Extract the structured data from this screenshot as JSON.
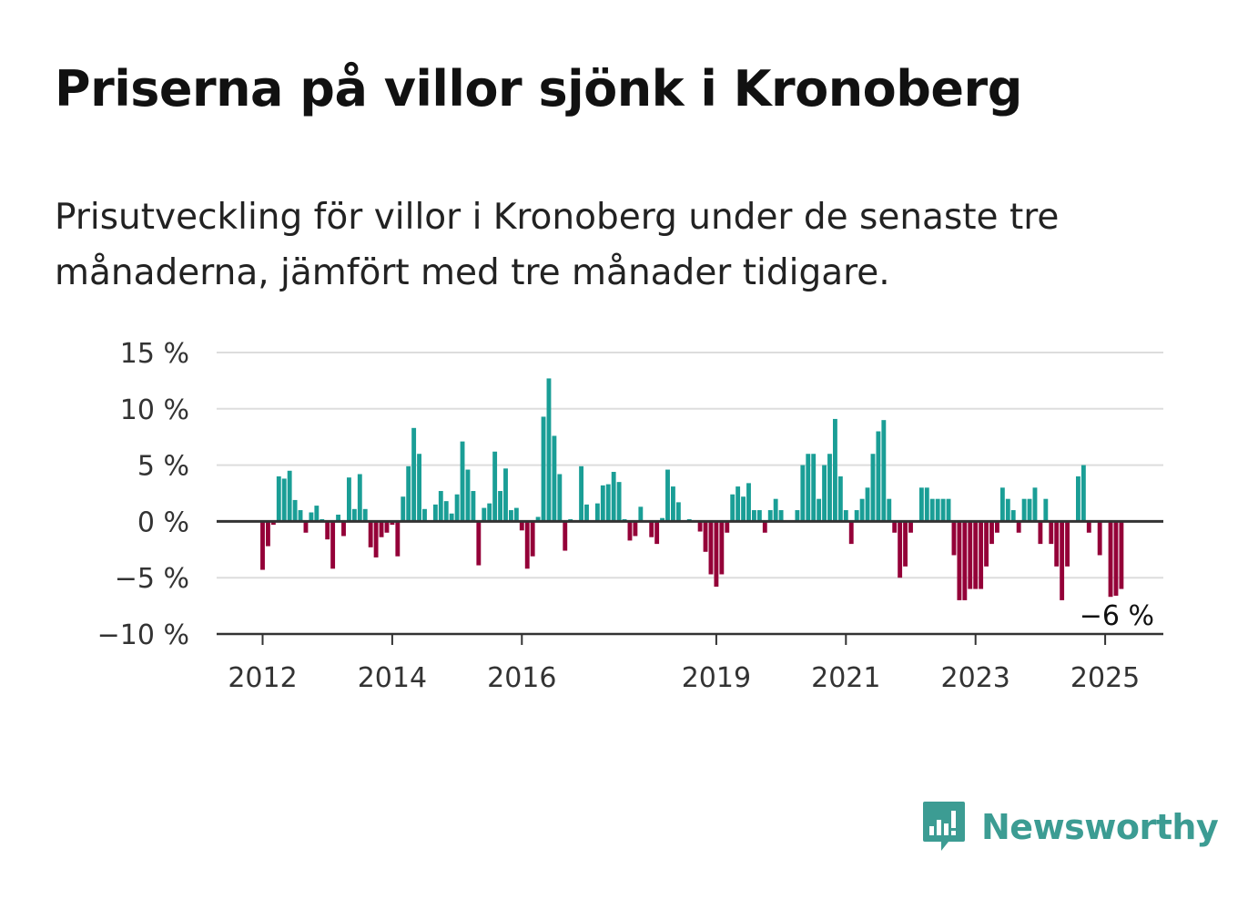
{
  "title": "Priserna på villor sjönk i Kronoberg",
  "subtitle": "Prisutveckling för villor i Kronoberg under de senaste tre månaderna, jämfört med tre månader tidigare.",
  "brand": "Newsworthy",
  "colors": {
    "positive": "#1a9e96",
    "negative": "#940038",
    "brand": "#3c9c93",
    "grid": "#dddddd",
    "axis": "#333333"
  },
  "chart_data": {
    "type": "bar",
    "title": "Priserna på villor sjönk i Kronoberg",
    "xlabel": "",
    "ylabel": "",
    "ylim": [
      -10,
      15
    ],
    "yticks": [
      15,
      10,
      5,
      0,
      -5,
      -10
    ],
    "ytick_labels": [
      "15 %",
      "10 %",
      "5 %",
      "0 %",
      "−5 %",
      "−10 %"
    ],
    "xtick_labels": [
      "2012",
      "2014",
      "2016",
      "2019",
      "2021",
      "2023",
      "2025"
    ],
    "grid": true,
    "x_start": "2012-01",
    "frequency": "monthly",
    "end_label": "−6 %",
    "values": [
      -4.3,
      -2.2,
      -0.3,
      4.0,
      3.8,
      4.5,
      1.9,
      1.0,
      -1.0,
      0.8,
      1.4,
      0.2,
      -1.6,
      -4.2,
      0.6,
      -1.3,
      3.9,
      1.1,
      4.2,
      1.1,
      -2.3,
      -3.2,
      -1.4,
      -1.0,
      -0.3,
      -3.1,
      2.2,
      4.9,
      8.3,
      6.0,
      1.1,
      0.0,
      1.5,
      2.7,
      1.8,
      0.7,
      2.4,
      7.1,
      4.6,
      2.7,
      -3.9,
      1.2,
      1.6,
      6.2,
      2.7,
      4.7,
      1.0,
      1.2,
      -0.8,
      -4.2,
      -3.1,
      0.4,
      9.3,
      12.7,
      7.6,
      4.2,
      -2.6,
      0.2,
      0.1,
      4.9,
      1.5,
      0.0,
      1.6,
      3.2,
      3.3,
      4.4,
      3.5,
      0.2,
      -1.7,
      -1.3,
      1.3,
      0.0,
      -1.4,
      -2.0,
      0.3,
      4.6,
      3.1,
      1.7,
      0.0,
      0.2,
      0.0,
      -0.9,
      -2.7,
      -4.7,
      -5.8,
      -4.7,
      -1.0,
      2.4,
      3.1,
      2.2,
      3.4,
      1.0,
      1.0,
      -1.0,
      1.0,
      2.0,
      1.0,
      0.0,
      0.0,
      1.0,
      5.0,
      6.0,
      6.0,
      2.0,
      5.0,
      6.0,
      9.1,
      4.0,
      1.0,
      -2.0,
      1.0,
      2.0,
      3.0,
      6.0,
      8.0,
      9.0,
      2.0,
      -1.0,
      -5.0,
      -4.0,
      -1.0,
      0.0,
      3.0,
      3.0,
      2.0,
      2.0,
      2.0,
      2.0,
      -3.0,
      -7.0,
      -7.0,
      -6.0,
      -6.0,
      -6.0,
      -4.0,
      -2.0,
      -1.0,
      3.0,
      2.0,
      1.0,
      -1.0,
      2.0,
      2.0,
      3.0,
      -2.0,
      2.0,
      -2.0,
      -4.0,
      -7.0,
      -4.0,
      0.0,
      4.0,
      5.0,
      -1.0,
      0.0,
      -3.0,
      0.0,
      -6.7,
      -6.6,
      -6.0
    ]
  }
}
